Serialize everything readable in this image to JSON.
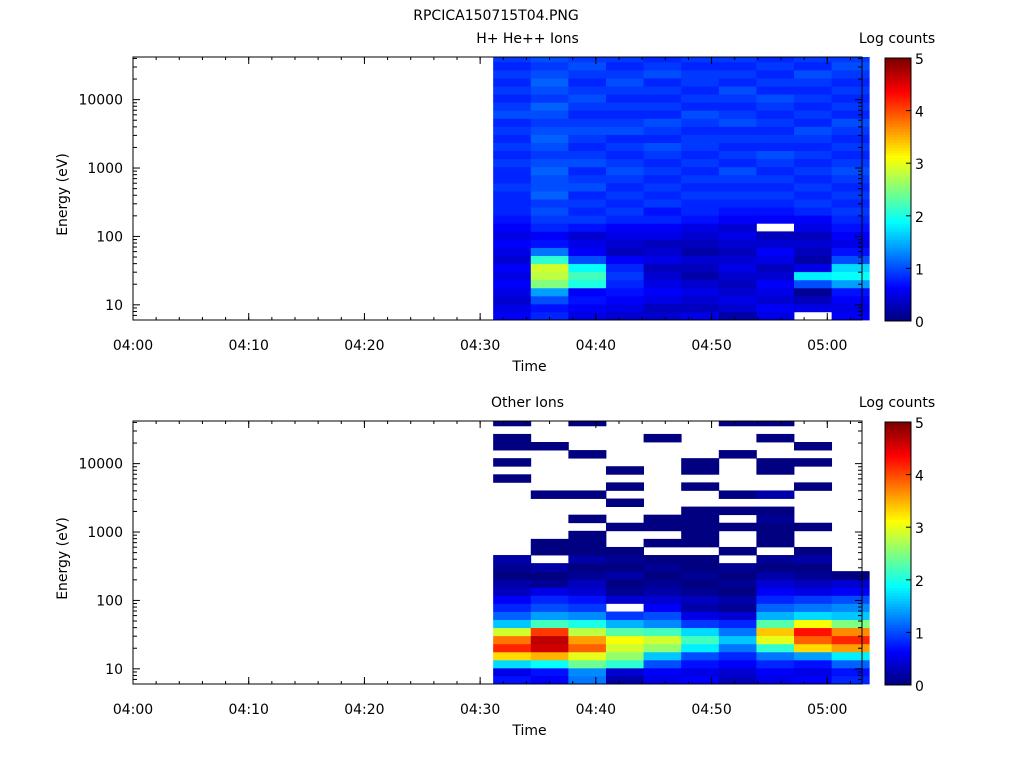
{
  "page_title": "RPCICA150715T04.PNG",
  "chart_data": [
    {
      "type": "heatmap",
      "title": "H+ He++ Ions",
      "xlabel": "Time",
      "ylabel": "Energy (eV)",
      "colorbar_label": "Log counts",
      "colorbar_ticks": [
        "0",
        "1",
        "2",
        "3",
        "4",
        "5"
      ],
      "color_range": [
        0,
        5
      ],
      "x_ticks": [
        "04:00",
        "04:10",
        "04:20",
        "04:30",
        "04:40",
        "04:50",
        "05:00"
      ],
      "y_ticks": [
        "10",
        "100",
        "1000",
        "10000"
      ],
      "y_scale": "log",
      "ylim": [
        6,
        42000
      ],
      "xlim": [
        "04:00",
        "05:03"
      ],
      "time_bins": [
        "04:32:45",
        "04:36:00",
        "04:39:15",
        "04:42:30",
        "04:45:45",
        "04:49:00",
        "04:52:15",
        "04:55:30",
        "04:58:45",
        "05:02:00"
      ],
      "energy_bins_ev": [
        6,
        7.9,
        10.3,
        13.5,
        17.7,
        23.2,
        30.5,
        40,
        52.4,
        68.8,
        90.3,
        118.5,
        155.5,
        204,
        268,
        351,
        461,
        605,
        794,
        1042,
        1367,
        1794,
        2354,
        3089,
        4054,
        5320,
        6982,
        9162,
        12023,
        15778,
        20705,
        27170,
        35656,
        42000
      ],
      "z_log_counts": [
        [
          0.6,
          0.5,
          0.4,
          0.5,
          0.6,
          0.5,
          0.6,
          0.4,
          0.5,
          0.6,
          0.5,
          0.6,
          0.7,
          0.8,
          0.8,
          0.8,
          0.9,
          0.8,
          0.8,
          0.9,
          0.8,
          0.9,
          0.8,
          0.9,
          0.8,
          1.0,
          0.9,
          0.8,
          0.9,
          0.8,
          0.9,
          0.8,
          0.9
        ],
        [
          0.8,
          0.7,
          1.0,
          1.4,
          2.5,
          2.8,
          2.9,
          2.1,
          1.2,
          0.7,
          0.6,
          0.8,
          0.9,
          1.0,
          0.9,
          1.1,
          1.0,
          1.0,
          1.1,
          1.0,
          0.9,
          1.0,
          1.1,
          1.0,
          0.9,
          1.0,
          1.1,
          0.9,
          1.0,
          1.1,
          1.0,
          0.9,
          1.0
        ],
        [
          0.5,
          0.6,
          0.7,
          0.6,
          2.0,
          2.2,
          1.9,
          1.0,
          0.6,
          0.5,
          0.4,
          0.7,
          0.9,
          0.8,
          0.9,
          0.8,
          1.0,
          0.9,
          0.8,
          1.0,
          0.9,
          0.8,
          0.9,
          1.0,
          0.9,
          0.8,
          0.9,
          1.0,
          0.9,
          0.8,
          0.9,
          1.0,
          0.9
        ],
        [
          0.4,
          0.5,
          0.6,
          0.7,
          0.8,
          0.9,
          0.8,
          0.6,
          0.3,
          0.4,
          0.5,
          0.6,
          0.8,
          0.9,
          0.8,
          0.9,
          0.8,
          0.9,
          1.0,
          0.9,
          0.8,
          0.9,
          0.8,
          1.0,
          0.9,
          0.8,
          0.9,
          0.8,
          0.9,
          1.0,
          0.9,
          0.8,
          0.9
        ],
        [
          0.4,
          0.3,
          0.5,
          0.6,
          0.5,
          0.4,
          0.3,
          0.5,
          0.4,
          0.3,
          0.5,
          0.6,
          0.8,
          0.7,
          0.9,
          0.8,
          0.9,
          0.8,
          0.9,
          0.8,
          0.9,
          1.0,
          0.8,
          0.9,
          1.0,
          0.8,
          0.9,
          0.8,
          0.9,
          0.8,
          1.0,
          0.9,
          0.8
        ],
        [
          0.5,
          0.3,
          0.4,
          0.5,
          0.4,
          0.2,
          0.3,
          0.4,
          0.2,
          0.3,
          0.4,
          0.5,
          0.7,
          0.8,
          0.8,
          0.9,
          0.8,
          0.9,
          0.8,
          0.9,
          0.8,
          0.9,
          0.9,
          0.8,
          0.9,
          1.0,
          0.8,
          0.9,
          0.8,
          0.9,
          0.9,
          0.8,
          0.9
        ],
        [
          0.2,
          0.4,
          0.5,
          0.4,
          0.3,
          0.4,
          0.5,
          0.4,
          0.3,
          0.4,
          0.5,
          0.4,
          0.6,
          0.7,
          0.8,
          0.9,
          0.8,
          0.9,
          1.0,
          0.8,
          0.9,
          0.8,
          0.9,
          0.8,
          1.0,
          0.9,
          0.8,
          0.9,
          1.0,
          0.8,
          0.9,
          0.8,
          0.9
        ],
        [
          0.5,
          0.6,
          0.4,
          0.5,
          0.6,
          0.4,
          0.3,
          0.5,
          0.6,
          0.4,
          0.3,
          -1,
          0.6,
          0.7,
          0.8,
          0.9,
          0.8,
          0.9,
          0.8,
          0.9,
          1.0,
          0.8,
          0.9,
          0.8,
          0.9,
          0.8,
          0.9,
          1.0,
          0.8,
          0.9,
          0.8,
          0.9,
          0.8
        ],
        [
          -1,
          0.5,
          0.3,
          0.1,
          1.0,
          1.8,
          0.5,
          0.2,
          0.3,
          0.4,
          0.3,
          0.5,
          0.6,
          0.8,
          0.9,
          0.8,
          0.9,
          0.8,
          0.9,
          0.8,
          0.9,
          0.8,
          0.9,
          1.0,
          0.8,
          0.9,
          0.8,
          0.9,
          0.8,
          0.9,
          1.0,
          0.8,
          0.9
        ],
        [
          0.6,
          0.5,
          0.6,
          0.7,
          1.4,
          1.9,
          1.7,
          1.0,
          0.7,
          0.5,
          0.6,
          0.7,
          0.8,
          0.9,
          0.8,
          0.9,
          0.8,
          0.9,
          1.0,
          0.9,
          0.8,
          0.9,
          0.8,
          0.9,
          1.0,
          0.8,
          0.9,
          0.8,
          0.9,
          0.8,
          0.9,
          1.0,
          0.9
        ]
      ]
    },
    {
      "type": "heatmap",
      "title": "Other Ions",
      "xlabel": "Time",
      "ylabel": "Energy (eV)",
      "colorbar_label": "Log counts",
      "colorbar_ticks": [
        "0",
        "1",
        "2",
        "3",
        "4",
        "5"
      ],
      "color_range": [
        0,
        5
      ],
      "x_ticks": [
        "04:00",
        "04:10",
        "04:20",
        "04:30",
        "04:40",
        "04:50",
        "05:00"
      ],
      "y_ticks": [
        "10",
        "100",
        "1000",
        "10000"
      ],
      "y_scale": "log",
      "ylim": [
        6,
        42000
      ],
      "xlim": [
        "04:00",
        "05:03"
      ],
      "time_bins": [
        "04:32:45",
        "04:36:00",
        "04:39:15",
        "04:42:30",
        "04:45:45",
        "04:49:00",
        "04:52:15",
        "04:55:30",
        "04:58:45",
        "05:02:00"
      ],
      "energy_bins_ev": [
        6,
        7.9,
        10.3,
        13.5,
        17.7,
        23.2,
        30.5,
        40,
        52.4,
        68.8,
        90.3,
        118.5,
        155.5,
        204,
        268,
        351,
        461,
        605,
        794,
        1042,
        1367,
        1794,
        2354,
        3089,
        4054,
        5320,
        6982,
        9162,
        12023,
        15778,
        20705,
        27170,
        35656,
        42000
      ],
      "z_log_counts": [
        [
          0.7,
          0.5,
          1.7,
          3.3,
          4.2,
          3.8,
          2.9,
          1.6,
          1.1,
          0.8,
          0.6,
          0.3,
          0.2,
          0.0,
          0.1,
          0.2,
          -1,
          -1,
          -1,
          -1,
          -1,
          -1,
          -1,
          -1,
          -1,
          0.0,
          -1,
          0.0,
          -1,
          0.0,
          0.0,
          -1,
          0.0
        ],
        [
          0.6,
          0.7,
          1.9,
          3.5,
          4.6,
          4.7,
          4.1,
          2.2,
          1.4,
          1.0,
          0.8,
          0.5,
          0.1,
          0.0,
          0.2,
          -1,
          0.0,
          0.0,
          -1,
          -1,
          -1,
          -1,
          -1,
          0.0,
          -1,
          -1,
          -1,
          -1,
          -1,
          0.0,
          -1,
          -1,
          -1
        ],
        [
          1.2,
          1.3,
          2.4,
          3.0,
          3.9,
          3.6,
          2.8,
          2.0,
          1.3,
          0.9,
          0.7,
          0.4,
          0.3,
          0.1,
          0.0,
          0.2,
          0.0,
          0.0,
          0.0,
          -1,
          0.0,
          -1,
          -1,
          0.0,
          -1,
          -1,
          -1,
          -1,
          0.0,
          -1,
          -1,
          -1,
          0.0
        ],
        [
          0.2,
          0.4,
          2.1,
          2.6,
          2.9,
          3.1,
          2.3,
          1.5,
          0.9,
          -1,
          0.4,
          0.1,
          0.0,
          0.2,
          0.0,
          0.1,
          0.0,
          -1,
          -1,
          0.0,
          -1,
          -1,
          0.0,
          -1,
          0.0,
          -1,
          0.0,
          -1,
          -1,
          -1,
          -1,
          -1,
          -1
        ],
        [
          0.5,
          0.6,
          1.0,
          1.6,
          2.6,
          2.9,
          2.2,
          1.3,
          1.0,
          0.6,
          0.4,
          0.2,
          0.1,
          0.0,
          0.1,
          0.0,
          -1,
          0.0,
          -1,
          0.0,
          0.0,
          -1,
          -1,
          -1,
          -1,
          -1,
          -1,
          -1,
          -1,
          -1,
          0.0,
          -1,
          -1
        ],
        [
          0.6,
          0.5,
          0.7,
          1.0,
          1.8,
          2.2,
          1.7,
          0.9,
          0.5,
          0.2,
          0.3,
          0.1,
          0.0,
          0.1,
          0.0,
          0.0,
          -1,
          0.0,
          0.0,
          0.0,
          0.0,
          0.0,
          -1,
          -1,
          0.0,
          -1,
          0.0,
          0.0,
          -1,
          -1,
          -1,
          -1,
          -1
        ],
        [
          0.3,
          0.4,
          0.6,
          0.8,
          1.2,
          1.6,
          1.2,
          0.8,
          0.4,
          0.1,
          0.2,
          0.0,
          0.1,
          0.0,
          0.1,
          -1,
          0.0,
          -1,
          -1,
          0.0,
          -1,
          0.0,
          -1,
          0.0,
          -1,
          -1,
          -1,
          -1,
          0.0,
          -1,
          -1,
          -1,
          0.0
        ],
        [
          0.5,
          0.6,
          0.8,
          1.2,
          2.1,
          3.0,
          3.4,
          2.3,
          1.5,
          1.1,
          0.8,
          0.6,
          0.4,
          0.2,
          0.0,
          0.1,
          -1,
          0.0,
          0.0,
          0.0,
          0.1,
          0.0,
          -1,
          0.2,
          -1,
          -1,
          0.0,
          0.0,
          -1,
          -1,
          0.0,
          -1,
          0.0
        ],
        [
          0.6,
          0.5,
          0.7,
          1.4,
          3.3,
          3.9,
          4.3,
          3.1,
          1.7,
          1.2,
          0.9,
          0.5,
          0.3,
          0.1,
          0.0,
          0.2,
          0.0,
          -1,
          -1,
          0.0,
          -1,
          -1,
          -1,
          -1,
          0.0,
          -1,
          -1,
          0.0,
          -1,
          0.0,
          -1,
          -1,
          -1
        ],
        [
          0.8,
          0.7,
          1.1,
          1.8,
          3.6,
          4.2,
          3.7,
          2.5,
          1.6,
          1.3,
          1.0,
          0.6,
          0.4,
          0.0,
          -1,
          -1,
          -1,
          -1,
          -1,
          -1,
          -1,
          -1,
          -1,
          -1,
          -1,
          -1,
          -1,
          -1,
          -1,
          -1,
          -1,
          -1,
          -1
        ]
      ]
    }
  ]
}
